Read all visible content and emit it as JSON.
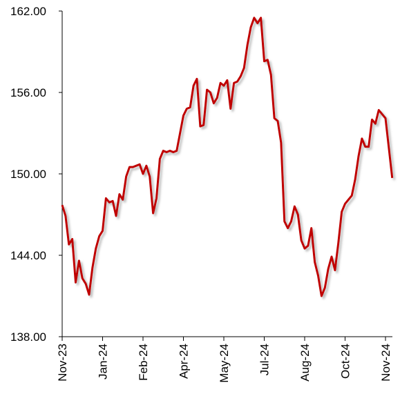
{
  "chart_data": {
    "type": "line",
    "categories": [
      "Nov-23",
      null,
      null,
      null,
      null,
      null,
      null,
      null,
      null,
      null,
      null,
      null,
      "Jan-24",
      null,
      null,
      null,
      null,
      null,
      null,
      null,
      null,
      null,
      null,
      null,
      "Feb-24",
      null,
      null,
      null,
      null,
      null,
      null,
      null,
      null,
      null,
      null,
      null,
      "Apr-24",
      null,
      null,
      null,
      null,
      null,
      null,
      null,
      null,
      null,
      null,
      null,
      "May-24",
      null,
      null,
      null,
      null,
      null,
      null,
      null,
      null,
      null,
      null,
      null,
      "Jul-24",
      null,
      null,
      null,
      null,
      null,
      null,
      null,
      null,
      null,
      null,
      null,
      "Aug-24",
      null,
      null,
      null,
      null,
      null,
      null,
      null,
      null,
      null,
      null,
      null,
      "Oct-24",
      null,
      null,
      null,
      null,
      null,
      null,
      null,
      null,
      null,
      null,
      null,
      "Nov-24",
      null,
      null
    ],
    "series": [
      {
        "color": "#c00000",
        "values": [
          147.7,
          146.9,
          144.8,
          145.2,
          142.0,
          143.6,
          142.3,
          141.9,
          141.1,
          143.1,
          144.5,
          145.4,
          145.8,
          148.2,
          147.9,
          148.0,
          146.9,
          148.5,
          148.1,
          149.8,
          150.5,
          150.5,
          150.6,
          150.7,
          150.0,
          150.6,
          149.8,
          147.1,
          148.2,
          151.1,
          151.7,
          151.6,
          151.7,
          151.6,
          151.7,
          153.0,
          154.3,
          154.8,
          154.9,
          156.5,
          157.0,
          153.5,
          153.6,
          156.2,
          156.0,
          155.2,
          155.6,
          156.7,
          156.5,
          156.9,
          154.8,
          156.7,
          156.8,
          157.2,
          157.8,
          159.5,
          160.8,
          161.5,
          161.1,
          161.5,
          158.3,
          158.4,
          157.3,
          154.1,
          153.9,
          152.3,
          146.5,
          146.0,
          146.5,
          147.6,
          147.0,
          145.1,
          144.5,
          144.7,
          146.0,
          143.5,
          142.5,
          141.0,
          141.6,
          143.0,
          143.9,
          142.9,
          144.9,
          147.2,
          147.8,
          148.1,
          148.4,
          149.6,
          151.3,
          152.6,
          152.0,
          152.0,
          154.0,
          153.7,
          154.7,
          154.4,
          154.1,
          151.9,
          149.7
        ]
      }
    ],
    "ylim": [
      138,
      162
    ],
    "yticks": [
      {
        "value": 138,
        "label": "138.00"
      },
      {
        "value": 144,
        "label": "144.00"
      },
      {
        "value": 150,
        "label": "150.00"
      },
      {
        "value": 156,
        "label": "156.00"
      },
      {
        "value": 162,
        "label": "162.00"
      }
    ],
    "grid": false
  }
}
